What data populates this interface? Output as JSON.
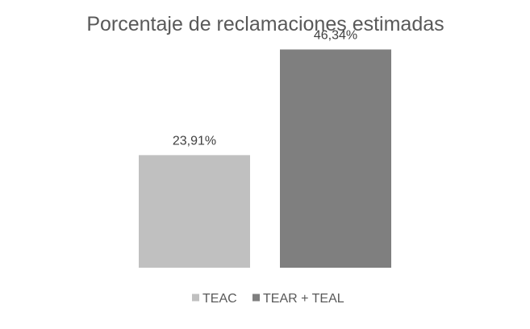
{
  "chart_data": {
    "type": "bar",
    "title": "Porcentaje de reclamaciones estimadas",
    "categories": [
      "TEAC",
      "TEAR + TEAL"
    ],
    "values": [
      23.91,
      46.34
    ],
    "value_labels": [
      "23,91%",
      "46,34%"
    ],
    "colors": [
      "#c0c0c0",
      "#7f7f7f"
    ],
    "ylim": [
      0,
      50
    ],
    "grid": false,
    "axes_visible": false,
    "legend": {
      "position": "bottom",
      "entries": [
        "TEAC",
        "TEAR + TEAL"
      ]
    }
  }
}
